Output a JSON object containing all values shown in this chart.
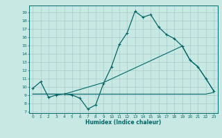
{
  "xlabel": "Humidex (Indice chaleur)",
  "bg_color": "#c8e8e4",
  "grid_color": "#a8cccc",
  "line_color": "#006666",
  "xlim": [
    -0.5,
    23.5
  ],
  "ylim": [
    6.8,
    19.8
  ],
  "xticks": [
    0,
    1,
    2,
    3,
    4,
    5,
    6,
    7,
    8,
    9,
    10,
    11,
    12,
    13,
    14,
    15,
    16,
    17,
    18,
    19,
    20,
    21,
    22,
    23
  ],
  "yticks": [
    7,
    8,
    9,
    10,
    11,
    12,
    13,
    14,
    15,
    16,
    17,
    18,
    19
  ],
  "line1_x": [
    0,
    1,
    2,
    3,
    4,
    5,
    6,
    7,
    8,
    9,
    10,
    11,
    12,
    13,
    14,
    15,
    16,
    17,
    18,
    19,
    20,
    21,
    22,
    23
  ],
  "line1_y": [
    9.8,
    10.6,
    8.7,
    9.0,
    9.1,
    9.0,
    8.6,
    7.3,
    7.8,
    10.4,
    12.4,
    15.1,
    16.5,
    19.1,
    18.4,
    18.7,
    17.2,
    16.3,
    15.8,
    14.9,
    13.2,
    12.4,
    11.0,
    9.5
  ],
  "line2_x": [
    0,
    4,
    22,
    23
  ],
  "line2_y": [
    9.1,
    9.1,
    9.1,
    9.3
  ],
  "line3_x": [
    0,
    4,
    9,
    19,
    20,
    21,
    22,
    23
  ],
  "line3_y": [
    9.1,
    9.1,
    10.5,
    14.9,
    13.2,
    12.4,
    11.0,
    9.5
  ]
}
